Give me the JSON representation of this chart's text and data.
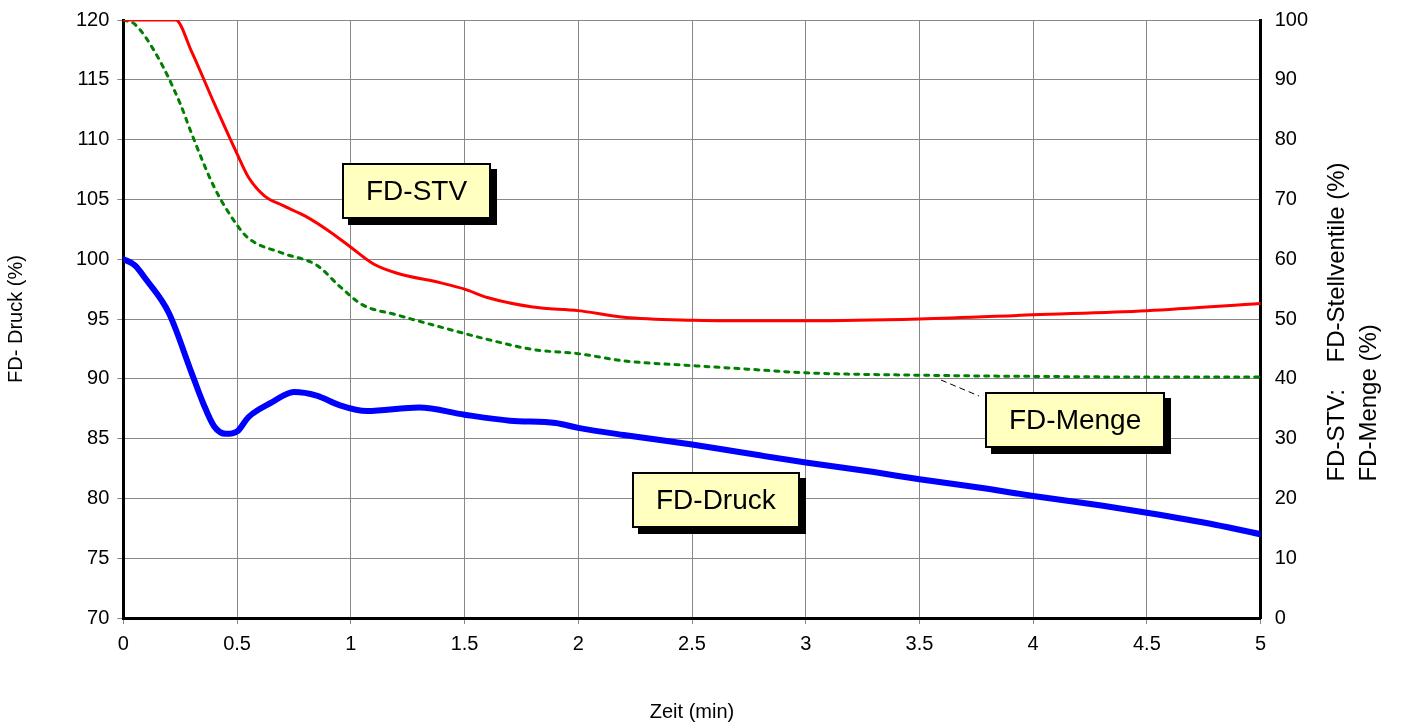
{
  "chart_data": {
    "type": "line",
    "xlabel": "Zeit (min)",
    "ylabel": "FD- Druck (%)",
    "y2label": "FD-STV:    FD-Stellventile (%)\nFD-Menge (%)",
    "xlim": [
      0,
      5
    ],
    "xticks": [
      0,
      0.5,
      1,
      1.5,
      2,
      2.5,
      3,
      3.5,
      4,
      4.5,
      5
    ],
    "ylim": [
      70,
      120
    ],
    "yticks": [
      70,
      75,
      80,
      85,
      90,
      95,
      100,
      105,
      110,
      115,
      120
    ],
    "y2lim": [
      0,
      100
    ],
    "y2ticks": [
      0,
      10,
      20,
      30,
      40,
      50,
      60,
      70,
      80,
      90,
      100
    ],
    "grid": true,
    "legend": false,
    "marker": "none",
    "series": [
      {
        "name": "FD-Druck",
        "color": "#0000ff",
        "line_style": "solid",
        "x": [
          0,
          0.05,
          0.1,
          0.2,
          0.3,
          0.35,
          0.4,
          0.45,
          0.5,
          0.55,
          0.65,
          0.75,
          0.85,
          0.95,
          1.07,
          1.3,
          1.5,
          1.7,
          1.9,
          2.0,
          2.2,
          2.5,
          2.7,
          3.0,
          3.3,
          3.5,
          3.8,
          4.0,
          4.3,
          4.5,
          4.8,
          5.0
        ],
        "values": [
          100,
          99.5,
          98.3,
          95.5,
          90.5,
          88,
          86,
          85.4,
          85.6,
          86.8,
          88,
          88.9,
          88.6,
          87.8,
          87.3,
          87.6,
          87.0,
          86.5,
          86.3,
          85.9,
          85.3,
          84.5,
          83.9,
          83.0,
          82.2,
          81.6,
          80.8,
          80.2,
          79.4,
          78.8,
          77.8,
          77.0
        ]
      },
      {
        "name": "FD-STV",
        "color": "#ff0000",
        "axis": "y2",
        "line_style": "solid",
        "x": [
          0,
          0.23,
          0.3,
          0.4,
          0.5,
          0.55,
          0.62,
          0.7,
          0.8,
          0.9,
          1.0,
          1.1,
          1.2,
          1.4,
          1.5,
          1.6,
          1.8,
          2.0,
          2.2,
          2.5,
          2.75,
          3.0,
          3.5,
          4.0,
          4.5,
          5.0
        ],
        "values": [
          100,
          100,
          94.7,
          86,
          77.6,
          73.7,
          70.6,
          69,
          67.2,
          64.8,
          62,
          59.2,
          57.7,
          56,
          55,
          53.6,
          52,
          51.4,
          50.3,
          49.8,
          49.7,
          49.7,
          50,
          50.7,
          51.4,
          52.6
        ]
      },
      {
        "name": "FD-Menge",
        "color": "#008000",
        "axis": "y2",
        "line_style": "dotted",
        "x": [
          0,
          0.05,
          0.15,
          0.25,
          0.3,
          0.4,
          0.5,
          0.55,
          0.7,
          0.85,
          0.95,
          1.05,
          1.2,
          1.4,
          1.6,
          1.8,
          2.0,
          2.2,
          2.5,
          2.75,
          3.0,
          3.5,
          4.0,
          4.5,
          5.0
        ],
        "values": [
          100,
          99.3,
          93.9,
          86,
          81,
          72,
          65.7,
          63.5,
          61,
          59,
          55.5,
          52.4,
          50.7,
          48.6,
          46.6,
          44.9,
          44.2,
          43,
          42.2,
          41.6,
          41,
          40.6,
          40.4,
          40.3,
          40.3
        ]
      }
    ]
  }
}
